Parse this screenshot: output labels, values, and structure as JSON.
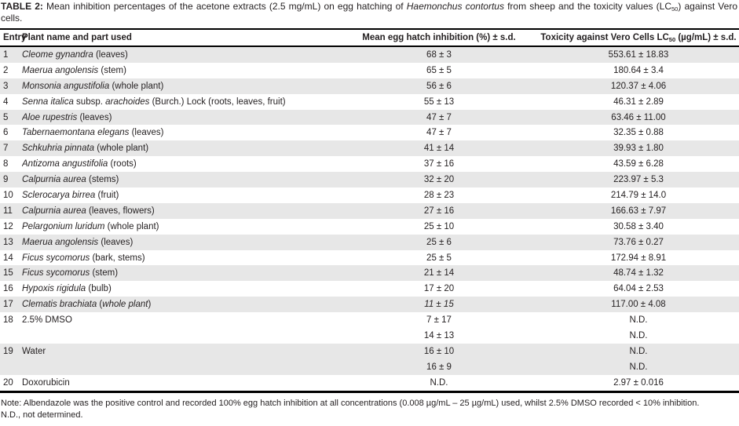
{
  "caption": {
    "segments": [
      {
        "t": "TABLE 2: ",
        "b": true
      },
      {
        "t": "Mean inhibition percentages of the acetone extracts (2.5 mg/mL) on egg hatching of "
      },
      {
        "t": "Haemonchus contortus",
        "i": true
      },
      {
        "t": " from sheep and the toxicity values (LC"
      },
      {
        "t": "50",
        "sub": true
      },
      {
        "t": ") against Vero cells."
      }
    ]
  },
  "table": {
    "headers": {
      "entry": "Entry",
      "plant": "Plant name and part used",
      "mean": "Mean egg hatch inhibition (%) ± s.d.",
      "toxicity_segments": [
        {
          "t": "Toxicity against Vero Cells LC"
        },
        {
          "t": "50",
          "sub": true
        },
        {
          "t": " (µg/mL) ± s.d."
        }
      ]
    },
    "rows": [
      {
        "entry": "1",
        "name": [
          {
            "t": "Cleome gynandra",
            "i": true
          },
          {
            "t": " (leaves)"
          }
        ],
        "mean": "68 ± 3",
        "toxicity": "553.61 ± 18.83",
        "shaded": true
      },
      {
        "entry": "2",
        "name": [
          {
            "t": "Maerua angolensis",
            "i": true
          },
          {
            "t": " (stem)"
          }
        ],
        "mean": "65 ± 5",
        "toxicity": "180.64 ± 3.4",
        "shaded": false
      },
      {
        "entry": "3",
        "name": [
          {
            "t": "Monsonia angustifolia",
            "i": true
          },
          {
            "t": " (whole plant)"
          }
        ],
        "mean": "56 ± 6",
        "toxicity": "120.37 ± 4.06",
        "shaded": true
      },
      {
        "entry": "4",
        "name": [
          {
            "t": "Senna italica",
            "i": true
          },
          {
            "t": " subsp. "
          },
          {
            "t": "arachoides",
            "i": true
          },
          {
            "t": " (Burch.) Lock (roots, leaves, fruit)"
          }
        ],
        "mean": "55 ± 13",
        "toxicity": "46.31 ± 2.89",
        "shaded": false
      },
      {
        "entry": "5",
        "name": [
          {
            "t": "Aloe rupestris",
            "i": true
          },
          {
            "t": " (leaves)"
          }
        ],
        "mean": "47 ± 7",
        "toxicity": "63.46 ± 11.00",
        "shaded": true
      },
      {
        "entry": "6",
        "name": [
          {
            "t": "Tabernaemontana elegans",
            "i": true
          },
          {
            "t": " (leaves)"
          }
        ],
        "mean": "47 ± 7",
        "toxicity": "32.35 ± 0.88",
        "shaded": false
      },
      {
        "entry": "7",
        "name": [
          {
            "t": "Schkuhria pinnata",
            "i": true
          },
          {
            "t": " (whole plant)"
          }
        ],
        "mean": "41 ± 14",
        "toxicity": "39.93 ± 1.80",
        "shaded": true
      },
      {
        "entry": "8",
        "name": [
          {
            "t": "Antizoma angustifolia",
            "i": true
          },
          {
            "t": " (roots)"
          }
        ],
        "mean": "37 ± 16",
        "toxicity": "43.59 ± 6.28",
        "shaded": false
      },
      {
        "entry": "9",
        "name": [
          {
            "t": "Calpurnia aurea",
            "i": true
          },
          {
            "t": " (stems)"
          }
        ],
        "mean": "32 ± 20",
        "toxicity": "223.97 ± 5.3",
        "shaded": true
      },
      {
        "entry": "10",
        "name": [
          {
            "t": "Sclerocarya birrea",
            "i": true
          },
          {
            "t": " (fruit)"
          }
        ],
        "mean": "28 ± 23",
        "toxicity": "214.79 ± 14.0",
        "shaded": false
      },
      {
        "entry": "11",
        "name": [
          {
            "t": "Calpurnia aurea",
            "i": true
          },
          {
            "t": " (leaves, flowers)"
          }
        ],
        "mean": "27 ± 16",
        "toxicity": "166.63 ± 7.97",
        "shaded": true
      },
      {
        "entry": "12",
        "name": [
          {
            "t": "Pelargonium luridum",
            "i": true
          },
          {
            "t": " (whole plant)"
          }
        ],
        "mean": "25 ± 10",
        "toxicity": "30.58 ± 3.40",
        "shaded": false
      },
      {
        "entry": "13",
        "name": [
          {
            "t": "Maerua angolensis",
            "i": true
          },
          {
            "t": " (leaves)"
          }
        ],
        "mean": "25 ± 6",
        "toxicity": "73.76 ± 0.27",
        "shaded": true
      },
      {
        "entry": "14",
        "name": [
          {
            "t": "Ficus sycomorus",
            "i": true
          },
          {
            "t": " (bark, stems)"
          }
        ],
        "mean": "25 ± 5",
        "toxicity": "172.94 ± 8.91",
        "shaded": false
      },
      {
        "entry": "15",
        "name": [
          {
            "t": "Ficus sycomorus",
            "i": true
          },
          {
            "t": " (stem)"
          }
        ],
        "mean": "21 ± 14",
        "toxicity": "48.74 ± 1.32",
        "shaded": true
      },
      {
        "entry": "16",
        "name": [
          {
            "t": "Hypoxis rigidula",
            "i": true
          },
          {
            "t": " (bulb)"
          }
        ],
        "mean": "17 ± 20",
        "toxicity": "64.04 ± 2.53",
        "shaded": false
      },
      {
        "entry": "17",
        "name": [
          {
            "t": "Clematis brachiata",
            "i": true
          },
          {
            "t": " ("
          },
          {
            "t": "whole plant",
            "i": true
          },
          {
            "t": ")"
          }
        ],
        "mean": "11 ± 15",
        "mean_italic": true,
        "toxicity": "117.00 ± 4.08",
        "shaded": true
      },
      {
        "entry": "18",
        "name": [
          {
            "t": "2.5% DMSO"
          }
        ],
        "mean": "7 ± 17",
        "toxicity": "N.D.",
        "shaded": false
      },
      {
        "entry": "",
        "name": [],
        "mean": "14 ± 13",
        "toxicity": "N.D.",
        "shaded": false
      },
      {
        "entry": "19",
        "name": [
          {
            "t": "Water"
          }
        ],
        "mean": "16 ± 10",
        "toxicity": "N.D.",
        "shaded": true
      },
      {
        "entry": "",
        "name": [],
        "mean": "16 ± 9",
        "toxicity": "N.D.",
        "shaded": true
      },
      {
        "entry": "20",
        "name": [
          {
            "t": "Doxorubicin"
          }
        ],
        "mean": "N.D.",
        "toxicity": "2.97 ± 0.016",
        "shaded": false
      }
    ]
  },
  "footnotes": {
    "note": "Note: Albendazole was the positive control and recorded 100% egg hatch inhibition at all concentrations (0.008 µg/mL – 25 µg/mL) used, whilst 2.5% DMSO recorded < 10% inhibition.",
    "nd": "N.D., not determined."
  }
}
